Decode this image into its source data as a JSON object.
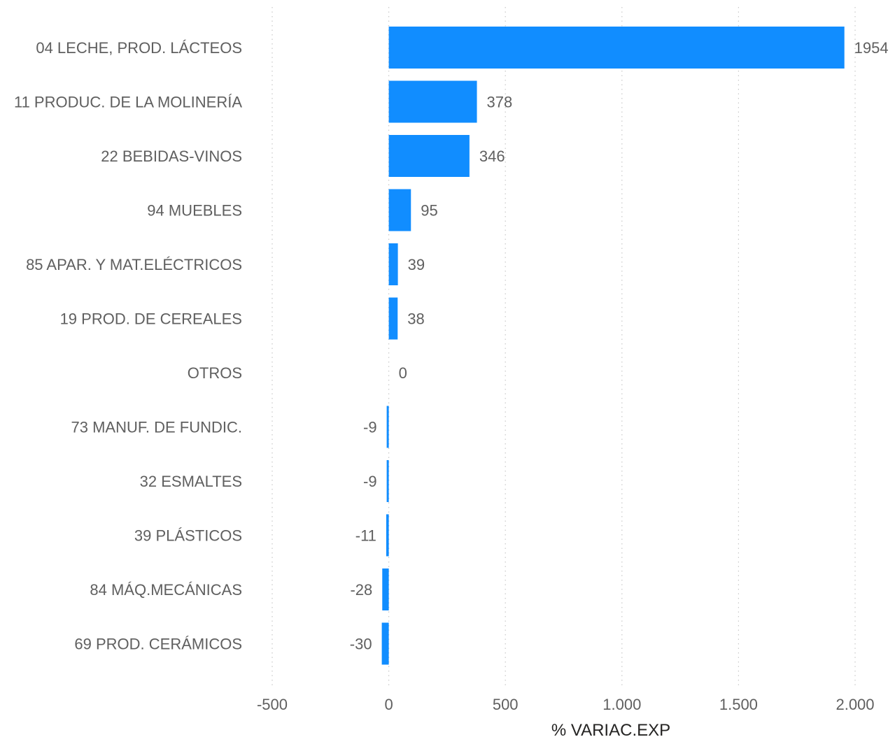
{
  "chart_data": {
    "type": "bar",
    "orientation": "horizontal",
    "categories": [
      "04 LECHE, PROD. LÁCTEOS",
      "11 PRODUC. DE LA MOLINERÍA",
      "22 BEBIDAS-VINOS",
      "94 MUEBLES",
      "85 APAR. Y MAT.ELÉCTRICOS",
      "19 PROD. DE CEREALES",
      "OTROS",
      "73 MANUF. DE FUNDIC.",
      "32 ESMALTES",
      "39 PLÁSTICOS",
      "84 MÁQ.MECÁNICAS",
      "69 PROD. CERÁMICOS"
    ],
    "values": [
      1954,
      378,
      346,
      95,
      39,
      38,
      0,
      -9,
      -9,
      -11,
      -28,
      -30
    ],
    "data_labels": [
      "1954",
      "378",
      "346",
      "95",
      "39",
      "38",
      "0",
      "-9",
      "-9",
      "-11",
      "-28",
      "-30"
    ],
    "xlabel": "% VARIAC.EXP",
    "xlim": [
      -500,
      2000
    ],
    "x_ticks": [
      -500,
      0,
      500,
      1000,
      1500,
      2000
    ],
    "x_tick_labels": [
      "-500",
      "0",
      "500",
      "1.000",
      "1.500",
      "2.000"
    ],
    "grid": true,
    "bar_color": "#118DFF"
  }
}
